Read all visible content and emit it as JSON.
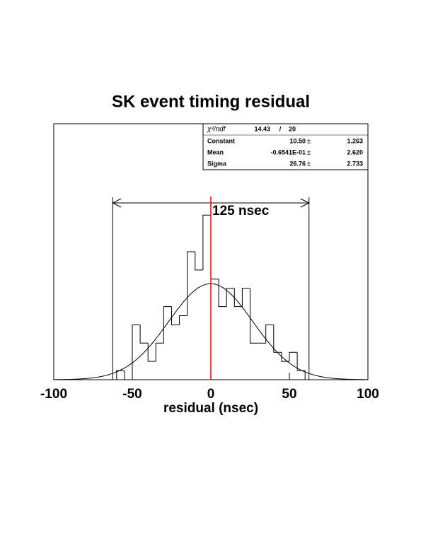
{
  "chart_data": {
    "type": "histogram",
    "title": "SK event timing residual",
    "xlabel": "residual (nsec)",
    "bins": [
      -100,
      -95,
      -90,
      -85,
      -80,
      -75,
      -70,
      -65,
      -60,
      -55,
      -50,
      -45,
      -40,
      -35,
      -30,
      -25,
      -20,
      -15,
      -10,
      -5,
      0,
      5,
      10,
      15,
      20,
      25,
      30,
      35,
      40,
      45,
      50,
      55,
      60,
      65,
      70,
      75,
      80,
      85,
      90,
      95,
      100
    ],
    "values": [
      0,
      0,
      0,
      0,
      0,
      0,
      0,
      0,
      1,
      0,
      6,
      4,
      2,
      4,
      8,
      6,
      7,
      14,
      12,
      18,
      11,
      8,
      10,
      8,
      10,
      4,
      4,
      6,
      3,
      2,
      3,
      1,
      0,
      0,
      0,
      0,
      0,
      0,
      0,
      0
    ],
    "color": "#000000",
    "xlim": [
      -100,
      100
    ],
    "xticks": [
      -100,
      -50,
      0,
      50,
      100
    ],
    "ylim": [
      0,
      28
    ],
    "stats": {
      "chi2_label": "χ²/ndf",
      "chi2": 14.43,
      "sep": "/",
      "ndf": 20,
      "pm": "±",
      "rows": [
        {
          "name": "Constant",
          "value": 10.5,
          "value_label": "10.50",
          "error": 1.263
        },
        {
          "name": "Mean",
          "value": -0.06541,
          "value_label": "-0.6541E-01",
          "error": 2.62,
          "error_label": "2.620"
        },
        {
          "name": "Sigma",
          "value": 26.76,
          "error": 2.733
        }
      ]
    },
    "fit_color": "#000000",
    "span": [
      -62.5,
      62.5
    ],
    "span_label": "125 nsec",
    "center_line": 0,
    "center_color": "#ff0000"
  }
}
